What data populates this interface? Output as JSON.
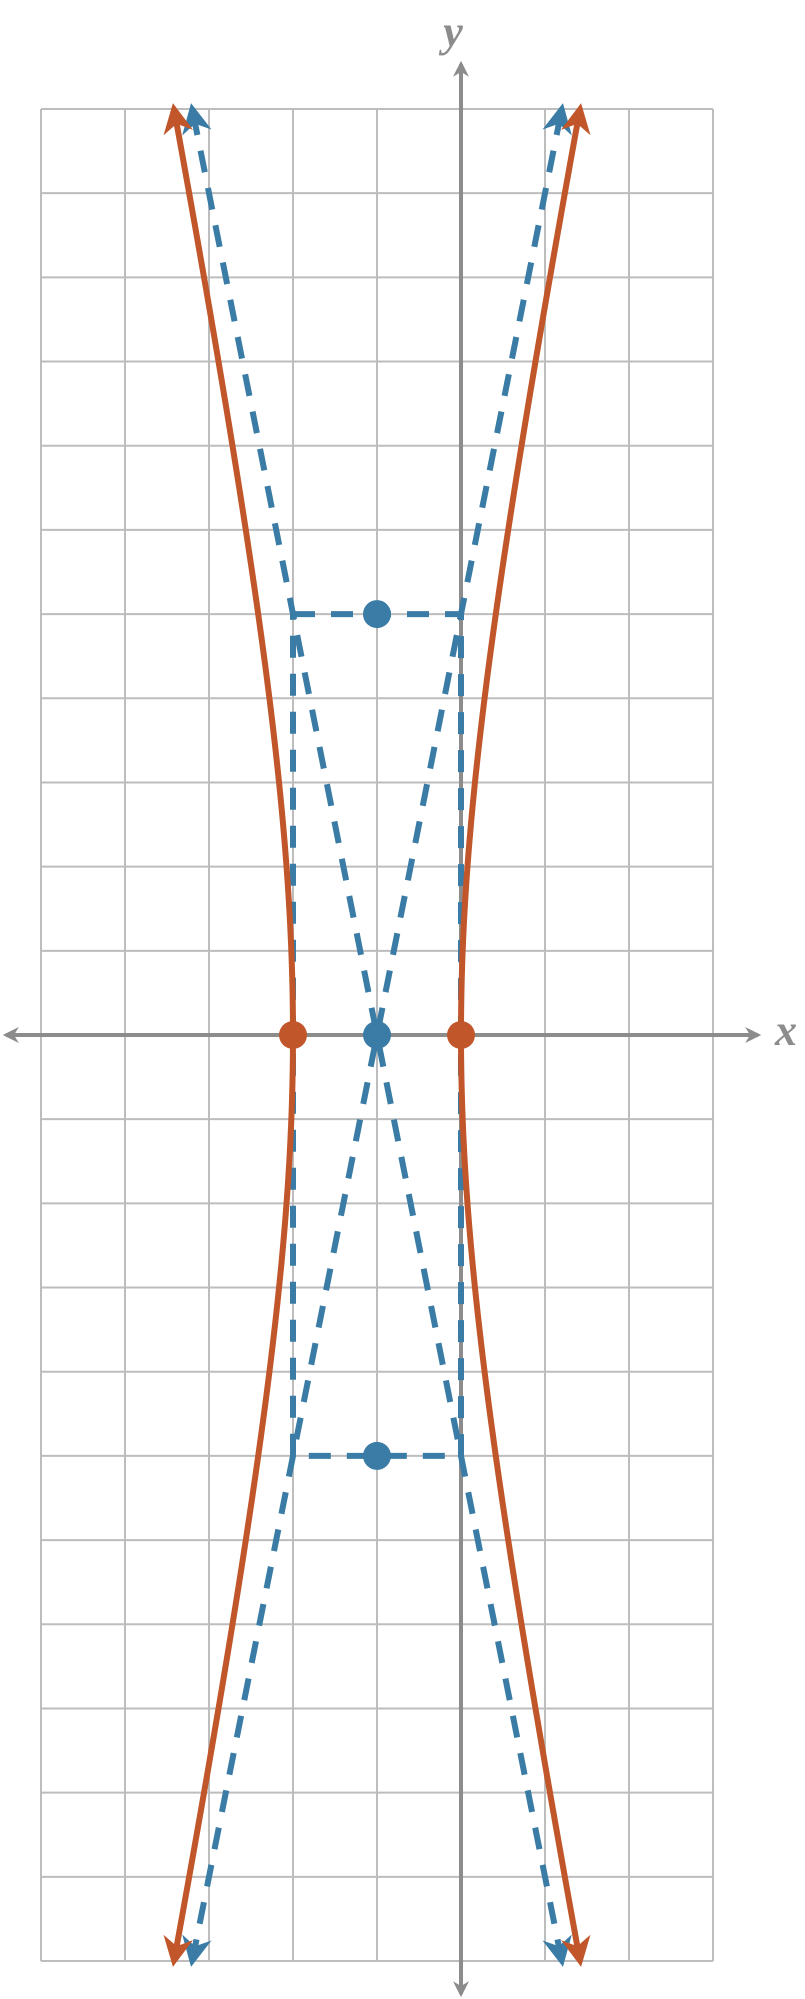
{
  "chart_data": {
    "type": "hyperbola",
    "x_label": "x",
    "y_label": "y",
    "xlim": [
      -5,
      3
    ],
    "ylim": [
      -11,
      11
    ],
    "xticks": [
      -5,
      -4,
      -3,
      -2,
      -1,
      0,
      1,
      2,
      3
    ],
    "yticks": [
      -11,
      -10,
      -9,
      -8,
      -7,
      -6,
      -5,
      -4,
      -3,
      -2,
      -1,
      0,
      1,
      2,
      3,
      4,
      5,
      6,
      7,
      8,
      9,
      10,
      11
    ],
    "grid": true,
    "center": {
      "x": -1,
      "y": 0
    },
    "a": 1,
    "b": 5,
    "curve_color": "#c0562a",
    "guide_color": "#3a7ca5",
    "axis_color": "#8c8c8c",
    "grid_color": "#bdbdbd"
  }
}
